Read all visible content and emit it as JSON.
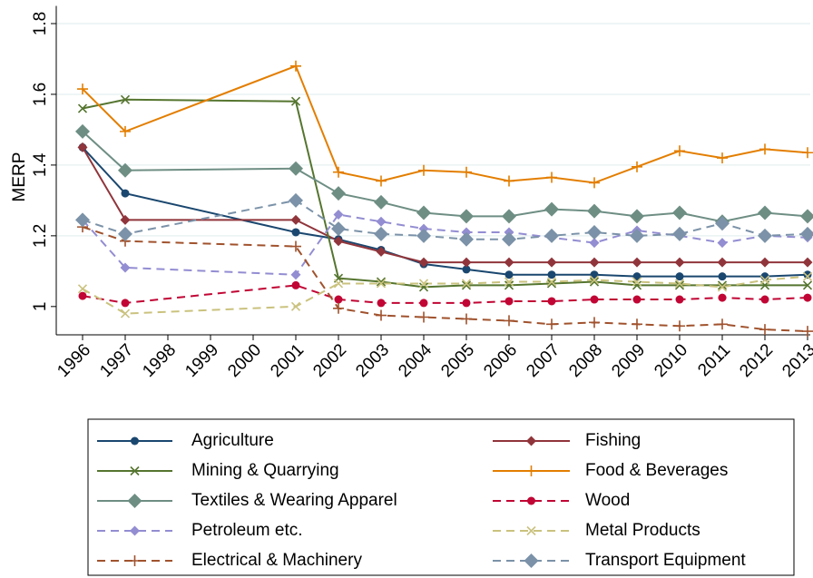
{
  "chart_data": {
    "type": "line",
    "y_label": "MERP",
    "x": [
      1996,
      1997,
      2001,
      2002,
      2003,
      2004,
      2005,
      2006,
      2007,
      2008,
      2009,
      2010,
      2011,
      2012,
      2013
    ],
    "xlim": [
      1996,
      2013
    ],
    "xticks": [
      1996,
      1997,
      1998,
      1999,
      2000,
      2001,
      2002,
      2003,
      2004,
      2005,
      2006,
      2007,
      2008,
      2009,
      2010,
      2011,
      2012,
      2013
    ],
    "ylim": [
      0.92,
      1.85
    ],
    "yticks": [
      1,
      1.2,
      1.4,
      1.6,
      1.8
    ],
    "grid": true,
    "series": [
      {
        "name": "Agriculture",
        "color": "#1a476f",
        "marker": "circle",
        "dash": false,
        "values": [
          1.45,
          1.32,
          1.21,
          1.19,
          1.16,
          1.12,
          1.105,
          1.09,
          1.09,
          1.09,
          1.085,
          1.085,
          1.085,
          1.085,
          1.09
        ]
      },
      {
        "name": "Fishing",
        "color": "#90353b",
        "marker": "diamond",
        "dash": false,
        "values": [
          1.45,
          1.245,
          1.245,
          1.185,
          1.155,
          1.125,
          1.125,
          1.125,
          1.125,
          1.125,
          1.125,
          1.125,
          1.125,
          1.125,
          1.125
        ]
      },
      {
        "name": "Mining & Quarrying",
        "color": "#55752f",
        "marker": "x",
        "dash": false,
        "values": [
          1.56,
          1.585,
          1.58,
          1.08,
          1.07,
          1.055,
          1.06,
          1.06,
          1.065,
          1.07,
          1.06,
          1.06,
          1.06,
          1.06,
          1.06
        ]
      },
      {
        "name": "Food & Beverages",
        "color": "#e37e00",
        "marker": "plus",
        "dash": false,
        "values": [
          1.615,
          1.495,
          1.68,
          1.38,
          1.355,
          1.385,
          1.38,
          1.355,
          1.365,
          1.35,
          1.395,
          1.44,
          1.42,
          1.445,
          1.435
        ]
      },
      {
        "name": "Textiles & Wearing Apparel",
        "color": "#6e8e84",
        "marker": "bigdiamond",
        "dash": false,
        "values": [
          1.495,
          1.385,
          1.39,
          1.32,
          1.295,
          1.265,
          1.255,
          1.255,
          1.275,
          1.27,
          1.255,
          1.265,
          1.24,
          1.265,
          1.255
        ]
      },
      {
        "name": "Wood",
        "color": "#c10534",
        "marker": "circle",
        "dash": true,
        "values": [
          1.03,
          1.01,
          1.06,
          1.02,
          1.01,
          1.01,
          1.01,
          1.015,
          1.015,
          1.02,
          1.02,
          1.02,
          1.025,
          1.02,
          1.025
        ]
      },
      {
        "name": "Petroleum etc.",
        "color": "#938dd2",
        "marker": "diamond",
        "dash": true,
        "values": [
          1.245,
          1.11,
          1.09,
          1.26,
          1.24,
          1.22,
          1.21,
          1.21,
          1.195,
          1.18,
          1.215,
          1.2,
          1.18,
          1.2,
          1.195
        ]
      },
      {
        "name": "Metal Products",
        "color": "#cac27e",
        "marker": "x",
        "dash": true,
        "values": [
          1.05,
          0.98,
          1.0,
          1.065,
          1.065,
          1.065,
          1.065,
          1.07,
          1.07,
          1.075,
          1.07,
          1.065,
          1.055,
          1.075,
          1.085
        ]
      },
      {
        "name": "Electrical & Machinery",
        "color": "#a0522d",
        "marker": "plus",
        "dash": true,
        "values": [
          1.225,
          1.185,
          1.17,
          0.995,
          0.975,
          0.97,
          0.965,
          0.96,
          0.95,
          0.955,
          0.95,
          0.945,
          0.95,
          0.935,
          0.93
        ]
      },
      {
        "name": "Transport Equipment",
        "color": "#7b92a8",
        "marker": "bigdiamond",
        "dash": true,
        "values": [
          1.245,
          1.205,
          1.3,
          1.22,
          1.205,
          1.2,
          1.19,
          1.19,
          1.2,
          1.21,
          1.2,
          1.205,
          1.235,
          1.2,
          1.205
        ]
      }
    ]
  }
}
